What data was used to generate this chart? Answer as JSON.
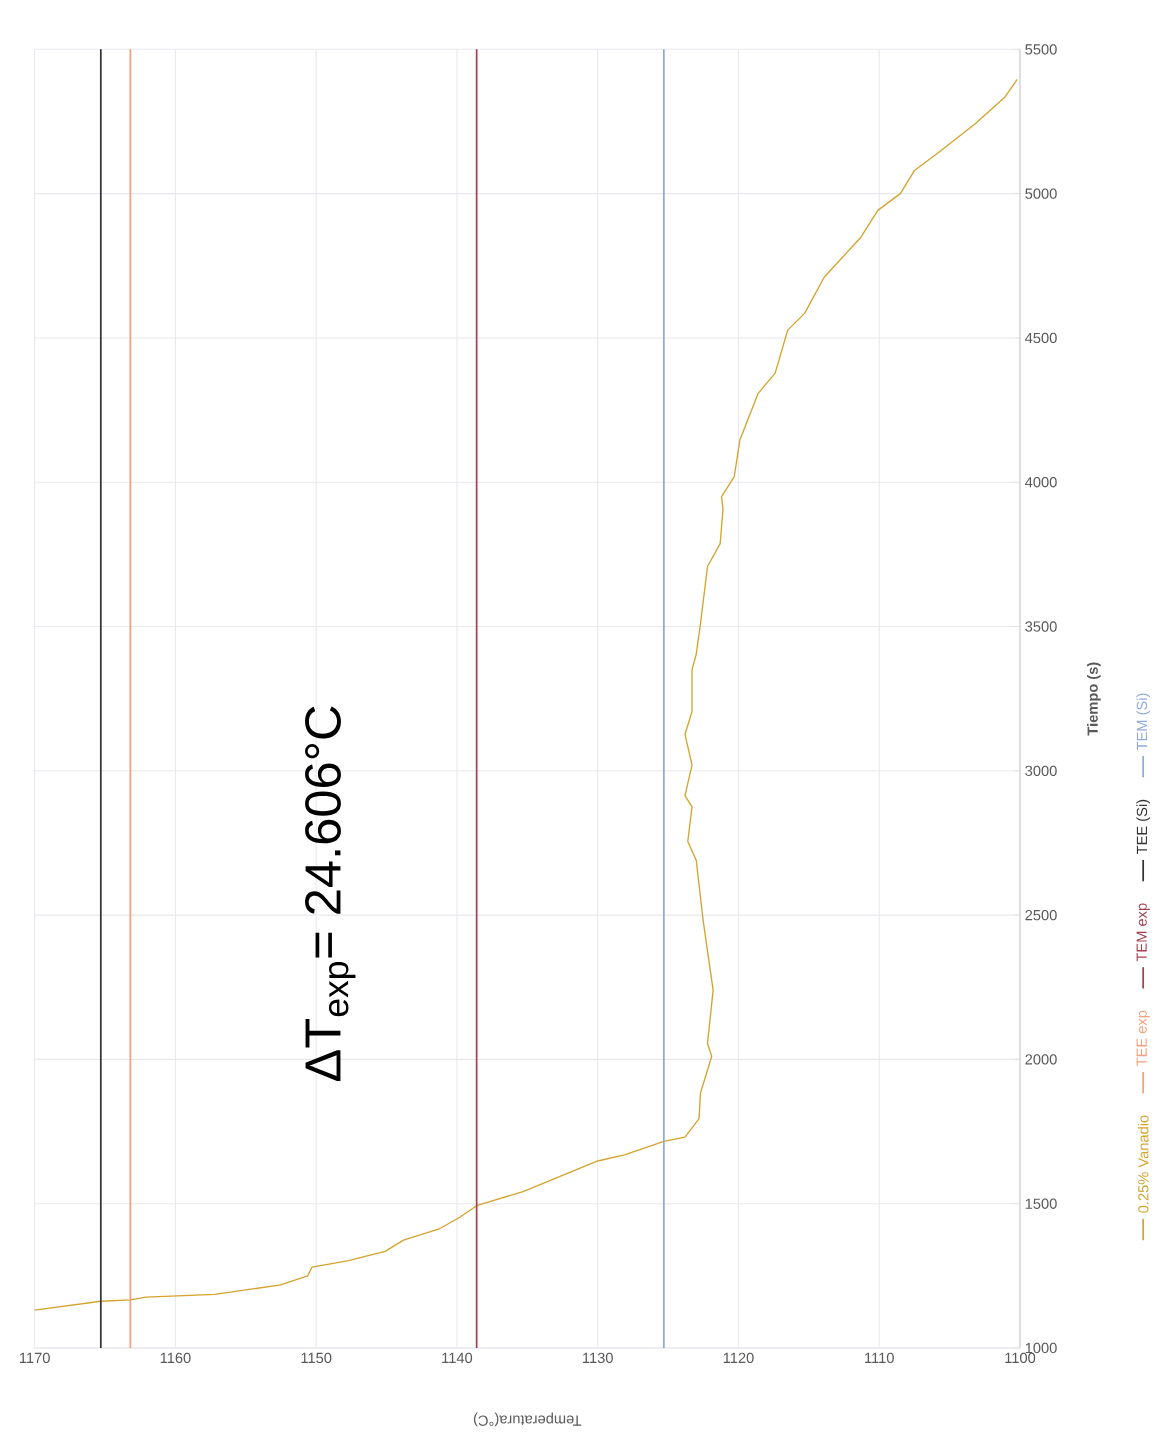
{
  "chart_data": {
    "type": "line",
    "xlabel": "Temperatura(°C)",
    "ylabel": "Tiempo (s)",
    "annotations": [
      "ΔT$_{exp}$= 24.606°C"
    ],
    "xlim": [
      1170,
      1100
    ],
    "xticks": [
      1170,
      1160,
      1150,
      1140,
      1130,
      1120,
      1110,
      1100
    ],
    "ylim": [
      1000,
      5500
    ],
    "yticks": [
      1000,
      1500,
      2000,
      2500,
      3000,
      3500,
      4000,
      4500,
      5000,
      5500
    ],
    "grid": true,
    "legend": "right",
    "series": [
      {
        "name": "0.25% Vanadio",
        "color": "#d4a32c",
        "values": [
          1131,
          1162,
          1167,
          1176,
          1186,
          1218,
          1250,
          1280,
          1303,
          1335,
          1374,
          1414,
          1453,
          1493,
          1542,
          1648,
          1669,
          1716,
          1731,
          1795,
          1883,
          2011,
          2055,
          2240,
          2478,
          2690,
          2755,
          2875,
          2914,
          3020,
          3126,
          3205,
          3350,
          3404,
          3509,
          3708,
          3787,
          3906,
          3950,
          4019,
          4146,
          4308,
          4377,
          4527,
          4585,
          4711,
          4849,
          4942,
          5000,
          5080,
          5138,
          5241,
          5333,
          5396
        ],
        "x": [
          1170,
          1165.3,
          1163.2,
          1162.1,
          1157.2,
          1152.6,
          1150.6,
          1150.3,
          1147.7,
          1145.1,
          1143.8,
          1141.2,
          1139.8,
          1138.6,
          1135.3,
          1130.0,
          1128.1,
          1125.3,
          1123.8,
          1122.8,
          1122.7,
          1121.9,
          1122.2,
          1121.8,
          1122.5,
          1123.0,
          1123.6,
          1123.3,
          1123.8,
          1123.3,
          1123.8,
          1123.3,
          1123.3,
          1123.0,
          1122.7,
          1122.2,
          1121.3,
          1121.1,
          1121.2,
          1120.3,
          1119.9,
          1118.6,
          1117.4,
          1116.5,
          1115.3,
          1113.9,
          1111.3,
          1110.1,
          1108.5,
          1107.5,
          1105.9,
          1103.2,
          1101.1,
          1100.2
        ]
      },
      {
        "name": "TEE exp",
        "color": "#f2a07b",
        "x": [
          1163.2,
          1163.2
        ],
        "values": [
          1000,
          5500
        ]
      },
      {
        "name": "TEM exp",
        "color": "#a3424f",
        "x": [
          1138.6,
          1138.6
        ],
        "values": [
          1000,
          5500
        ]
      },
      {
        "name": "TEE (Si)",
        "color": "#333333",
        "x": [
          1165.3,
          1165.3
        ],
        "values": [
          1000,
          5500
        ]
      },
      {
        "name": "TEM (Si)",
        "color": "#8eaadb",
        "x": [
          1125.3,
          1125.3
        ],
        "values": [
          1000,
          5500
        ]
      }
    ]
  }
}
